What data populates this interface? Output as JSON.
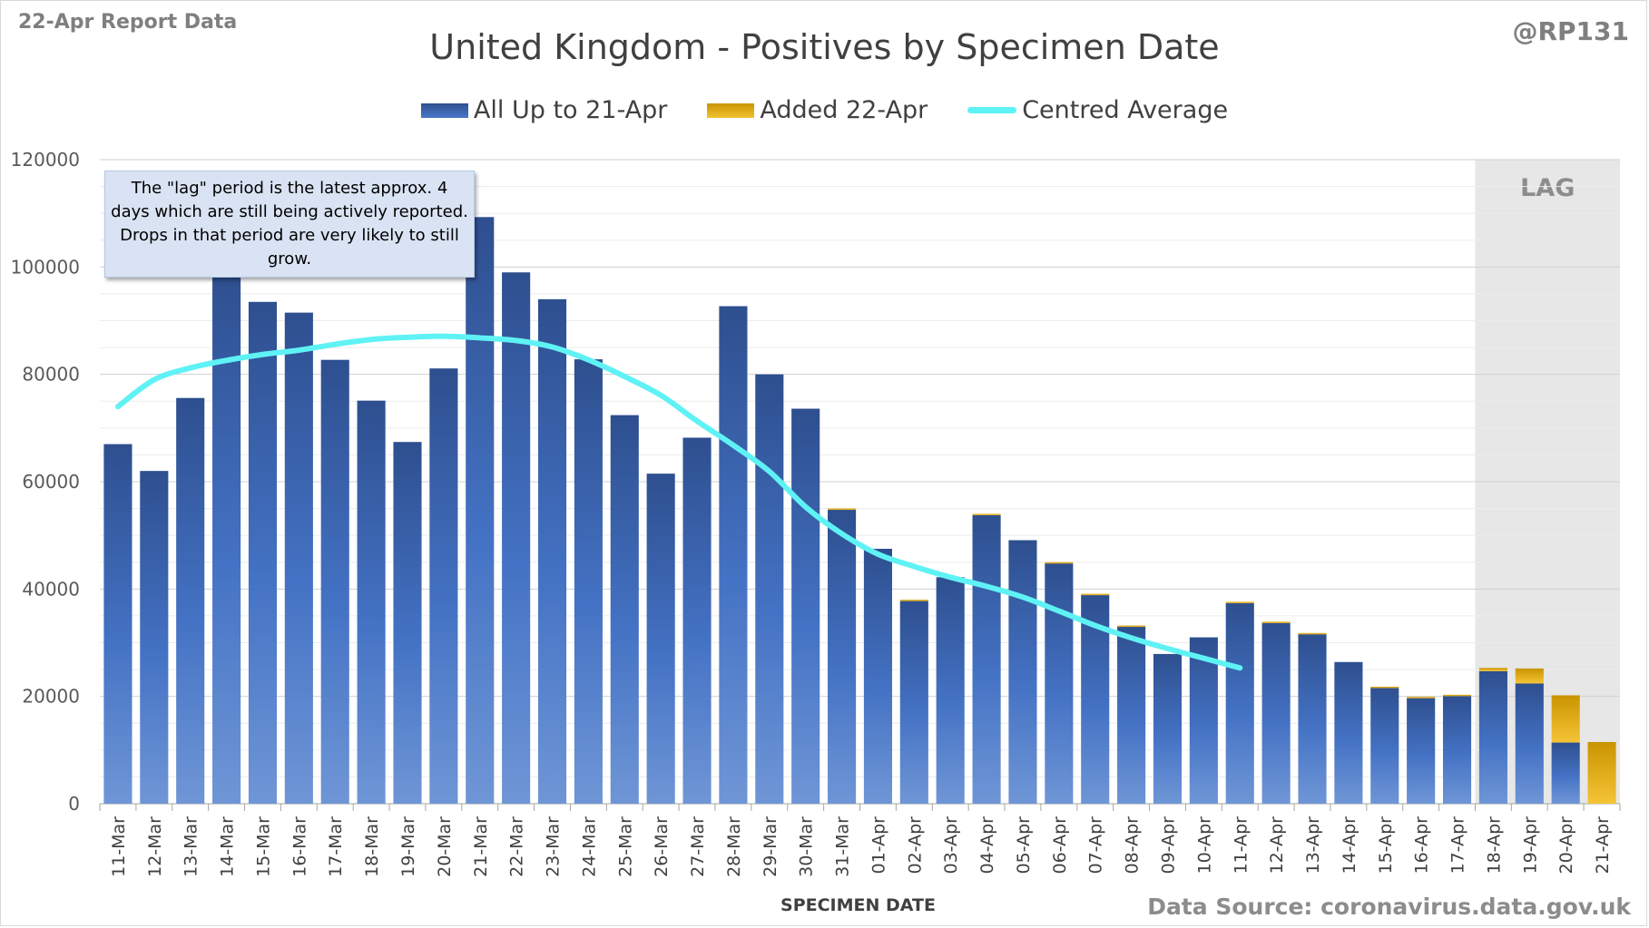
{
  "header": {
    "report_label": "22-Apr Report Data",
    "handle": "@RP131",
    "source": "Data Source: coronavirus.data.gov.uk"
  },
  "annotation": {
    "note": "The \"lag\" period is the latest approx. 4 days which are still being actively reported.  Drops in that period are very likely to still grow.",
    "lag_label": "LAG"
  },
  "colors": {
    "bar_blue": "#2e4f8f",
    "bar_blue_light": "#6f96d6",
    "bar_gold": "#e8b100",
    "line_cyan": "#5ff2f5",
    "lag_shade": "#e7e7e7"
  },
  "chart_data": {
    "type": "bar",
    "stacked": true,
    "title": "United Kingdom - Positives by Specimen Date",
    "xlabel": "SPECIMEN DATE",
    "ylabel": "",
    "ylim": [
      0,
      120000
    ],
    "yticks": [
      0,
      20000,
      40000,
      60000,
      80000,
      100000,
      120000
    ],
    "grid": true,
    "legend_position": "top-center",
    "categories": [
      "11-Mar",
      "12-Mar",
      "13-Mar",
      "14-Mar",
      "15-Mar",
      "16-Mar",
      "17-Mar",
      "18-Mar",
      "19-Mar",
      "20-Mar",
      "21-Mar",
      "22-Mar",
      "23-Mar",
      "24-Mar",
      "25-Mar",
      "26-Mar",
      "27-Mar",
      "28-Mar",
      "29-Mar",
      "30-Mar",
      "31-Mar",
      "01-Apr",
      "02-Apr",
      "03-Apr",
      "04-Apr",
      "05-Apr",
      "06-Apr",
      "07-Apr",
      "08-Apr",
      "09-Apr",
      "10-Apr",
      "11-Apr",
      "12-Apr",
      "13-Apr",
      "14-Apr",
      "15-Apr",
      "16-Apr",
      "17-Apr",
      "18-Apr",
      "19-Apr",
      "20-Apr",
      "21-Apr"
    ],
    "series": [
      {
        "name": "All Up to 21-Apr",
        "kind": "bar",
        "values": [
          67000,
          62000,
          75600,
          99600,
          93500,
          91500,
          82700,
          75100,
          67400,
          81100,
          109300,
          99000,
          94000,
          82800,
          72400,
          61500,
          68200,
          92700,
          80000,
          73600,
          54800,
          47500,
          37800,
          42200,
          53800,
          49100,
          44800,
          38900,
          33000,
          27900,
          31000,
          37400,
          33700,
          31600,
          26400,
          21700,
          19800,
          20200,
          24700,
          22400,
          11400,
          0
        ]
      },
      {
        "name": "Added 22-Apr",
        "kind": "bar",
        "values": [
          0,
          0,
          0,
          0,
          0,
          0,
          0,
          0,
          0,
          0,
          0,
          0,
          0,
          0,
          0,
          0,
          0,
          0,
          0,
          0,
          200,
          0,
          200,
          0,
          200,
          0,
          200,
          200,
          200,
          0,
          0,
          200,
          200,
          200,
          0,
          100,
          100,
          100,
          600,
          2800,
          8800,
          11500
        ]
      },
      {
        "name": "Centred Average",
        "kind": "line",
        "values": [
          74000,
          79000,
          81200,
          82600,
          83700,
          84500,
          85600,
          86500,
          86900,
          87100,
          86800,
          86300,
          85100,
          82700,
          79600,
          76100,
          71300,
          66800,
          61900,
          55300,
          50300,
          46500,
          44200,
          42200,
          40500,
          38500,
          35900,
          33200,
          30900,
          28900,
          27100,
          25300,
          null,
          null,
          null,
          null,
          null,
          null,
          null,
          null,
          null,
          null
        ]
      }
    ],
    "lag_range": [
      "18-Apr",
      "21-Apr"
    ]
  }
}
